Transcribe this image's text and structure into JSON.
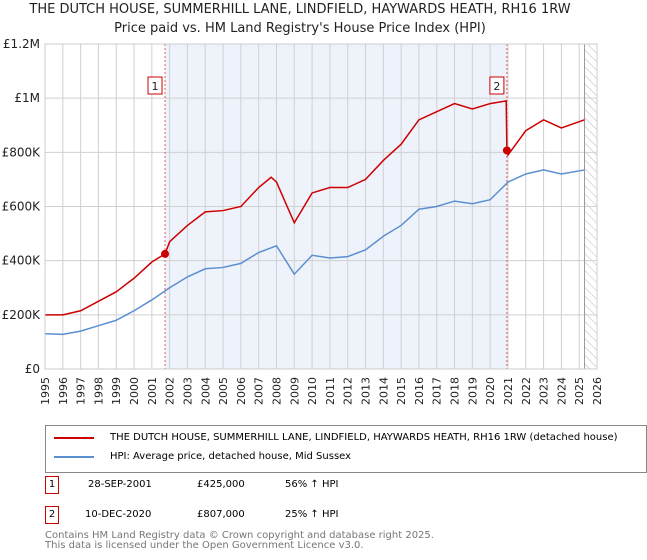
{
  "chart_data": {
    "type": "line",
    "title": "THE DUTCH HOUSE, SUMMERHILL LANE, LINDFIELD, HAYWARDS HEATH, RH16 1RW",
    "subtitle": "Price paid vs. HM Land Registry's House Price Index (HPI)",
    "xlim": [
      1995,
      2026
    ],
    "ylim": [
      0,
      1200000
    ],
    "x_ticks": [
      "1995",
      "1996",
      "1997",
      "1998",
      "1999",
      "2000",
      "2001",
      "2002",
      "2003",
      "2004",
      "2005",
      "2006",
      "2007",
      "2008",
      "2009",
      "2010",
      "2011",
      "2012",
      "2013",
      "2014",
      "2015",
      "2016",
      "2017",
      "2018",
      "2019",
      "2020",
      "2021",
      "2022",
      "2023",
      "2024",
      "2025",
      "2026"
    ],
    "y_ticks": [
      {
        "v": 0,
        "label": "£0"
      },
      {
        "v": 200000,
        "label": "£200K"
      },
      {
        "v": 400000,
        "label": "£400K"
      },
      {
        "v": 600000,
        "label": "£600K"
      },
      {
        "v": 800000,
        "label": "£800K"
      },
      {
        "v": 1000000,
        "label": "£1M"
      },
      {
        "v": 1200000,
        "label": "£1.2M"
      }
    ],
    "grid": true,
    "shaded_range": [
      2001.74,
      2020.94
    ],
    "forecast_hatch_from": 2025.3,
    "series": [
      {
        "name": "THE DUTCH HOUSE, SUMMERHILL LANE, LINDFIELD, HAYWARDS HEATH, RH16 1RW (detached house)",
        "color": "#cc0000",
        "x": [
          1995,
          1996,
          1997,
          1998,
          1999,
          2000,
          2001,
          2001.74,
          2002,
          2003,
          2004,
          2005,
          2006,
          2007,
          2007.7,
          2008,
          2009,
          2010,
          2011,
          2012,
          2013,
          2014,
          2015,
          2016,
          2017,
          2018,
          2019,
          2020,
          2020.9,
          2020.94,
          2021,
          2022,
          2023,
          2024,
          2025.3
        ],
        "y": [
          200000,
          200000,
          215000,
          250000,
          285000,
          335000,
          395000,
          425000,
          470000,
          530000,
          580000,
          585000,
          600000,
          670000,
          708000,
          690000,
          540000,
          650000,
          670000,
          670000,
          700000,
          770000,
          830000,
          920000,
          950000,
          980000,
          960000,
          980000,
          990000,
          807000,
          790000,
          880000,
          920000,
          890000,
          920000
        ]
      },
      {
        "name": "HPI: Average price, detached house, Mid Sussex",
        "color": "#5b8fd0",
        "x": [
          1995,
          1996,
          1997,
          1998,
          1999,
          2000,
          2001,
          2002,
          2003,
          2004,
          2005,
          2006,
          2007,
          2008,
          2009,
          2010,
          2011,
          2012,
          2013,
          2014,
          2015,
          2016,
          2017,
          2018,
          2019,
          2020,
          2021,
          2022,
          2023,
          2024,
          2025.3
        ],
        "y": [
          130000,
          128000,
          140000,
          160000,
          180000,
          215000,
          255000,
          300000,
          340000,
          370000,
          375000,
          390000,
          430000,
          455000,
          350000,
          420000,
          410000,
          415000,
          440000,
          490000,
          530000,
          590000,
          600000,
          620000,
          610000,
          625000,
          690000,
          720000,
          735000,
          720000,
          735000
        ]
      }
    ],
    "sales": [
      {
        "id": "1",
        "x": 2001.74,
        "y": 425000
      },
      {
        "id": "2",
        "x": 2020.94,
        "y": 807000
      }
    ]
  },
  "legend": {
    "red": "THE DUTCH HOUSE, SUMMERHILL LANE, LINDFIELD, HAYWARDS HEATH, RH16 1RW (detached house)",
    "blue": "HPI: Average price, detached house, Mid Sussex"
  },
  "sales_table": [
    {
      "id": "1",
      "date": "28-SEP-2001",
      "price": "£425,000",
      "hpi": "56% ↑ HPI"
    },
    {
      "id": "2",
      "date": "10-DEC-2020",
      "price": "£807,000",
      "hpi": "25% ↑ HPI"
    }
  ],
  "footer": {
    "line1": "Contains HM Land Registry data © Crown copyright and database right 2025.",
    "line2": "This data is licensed under the Open Government Licence v3.0."
  }
}
